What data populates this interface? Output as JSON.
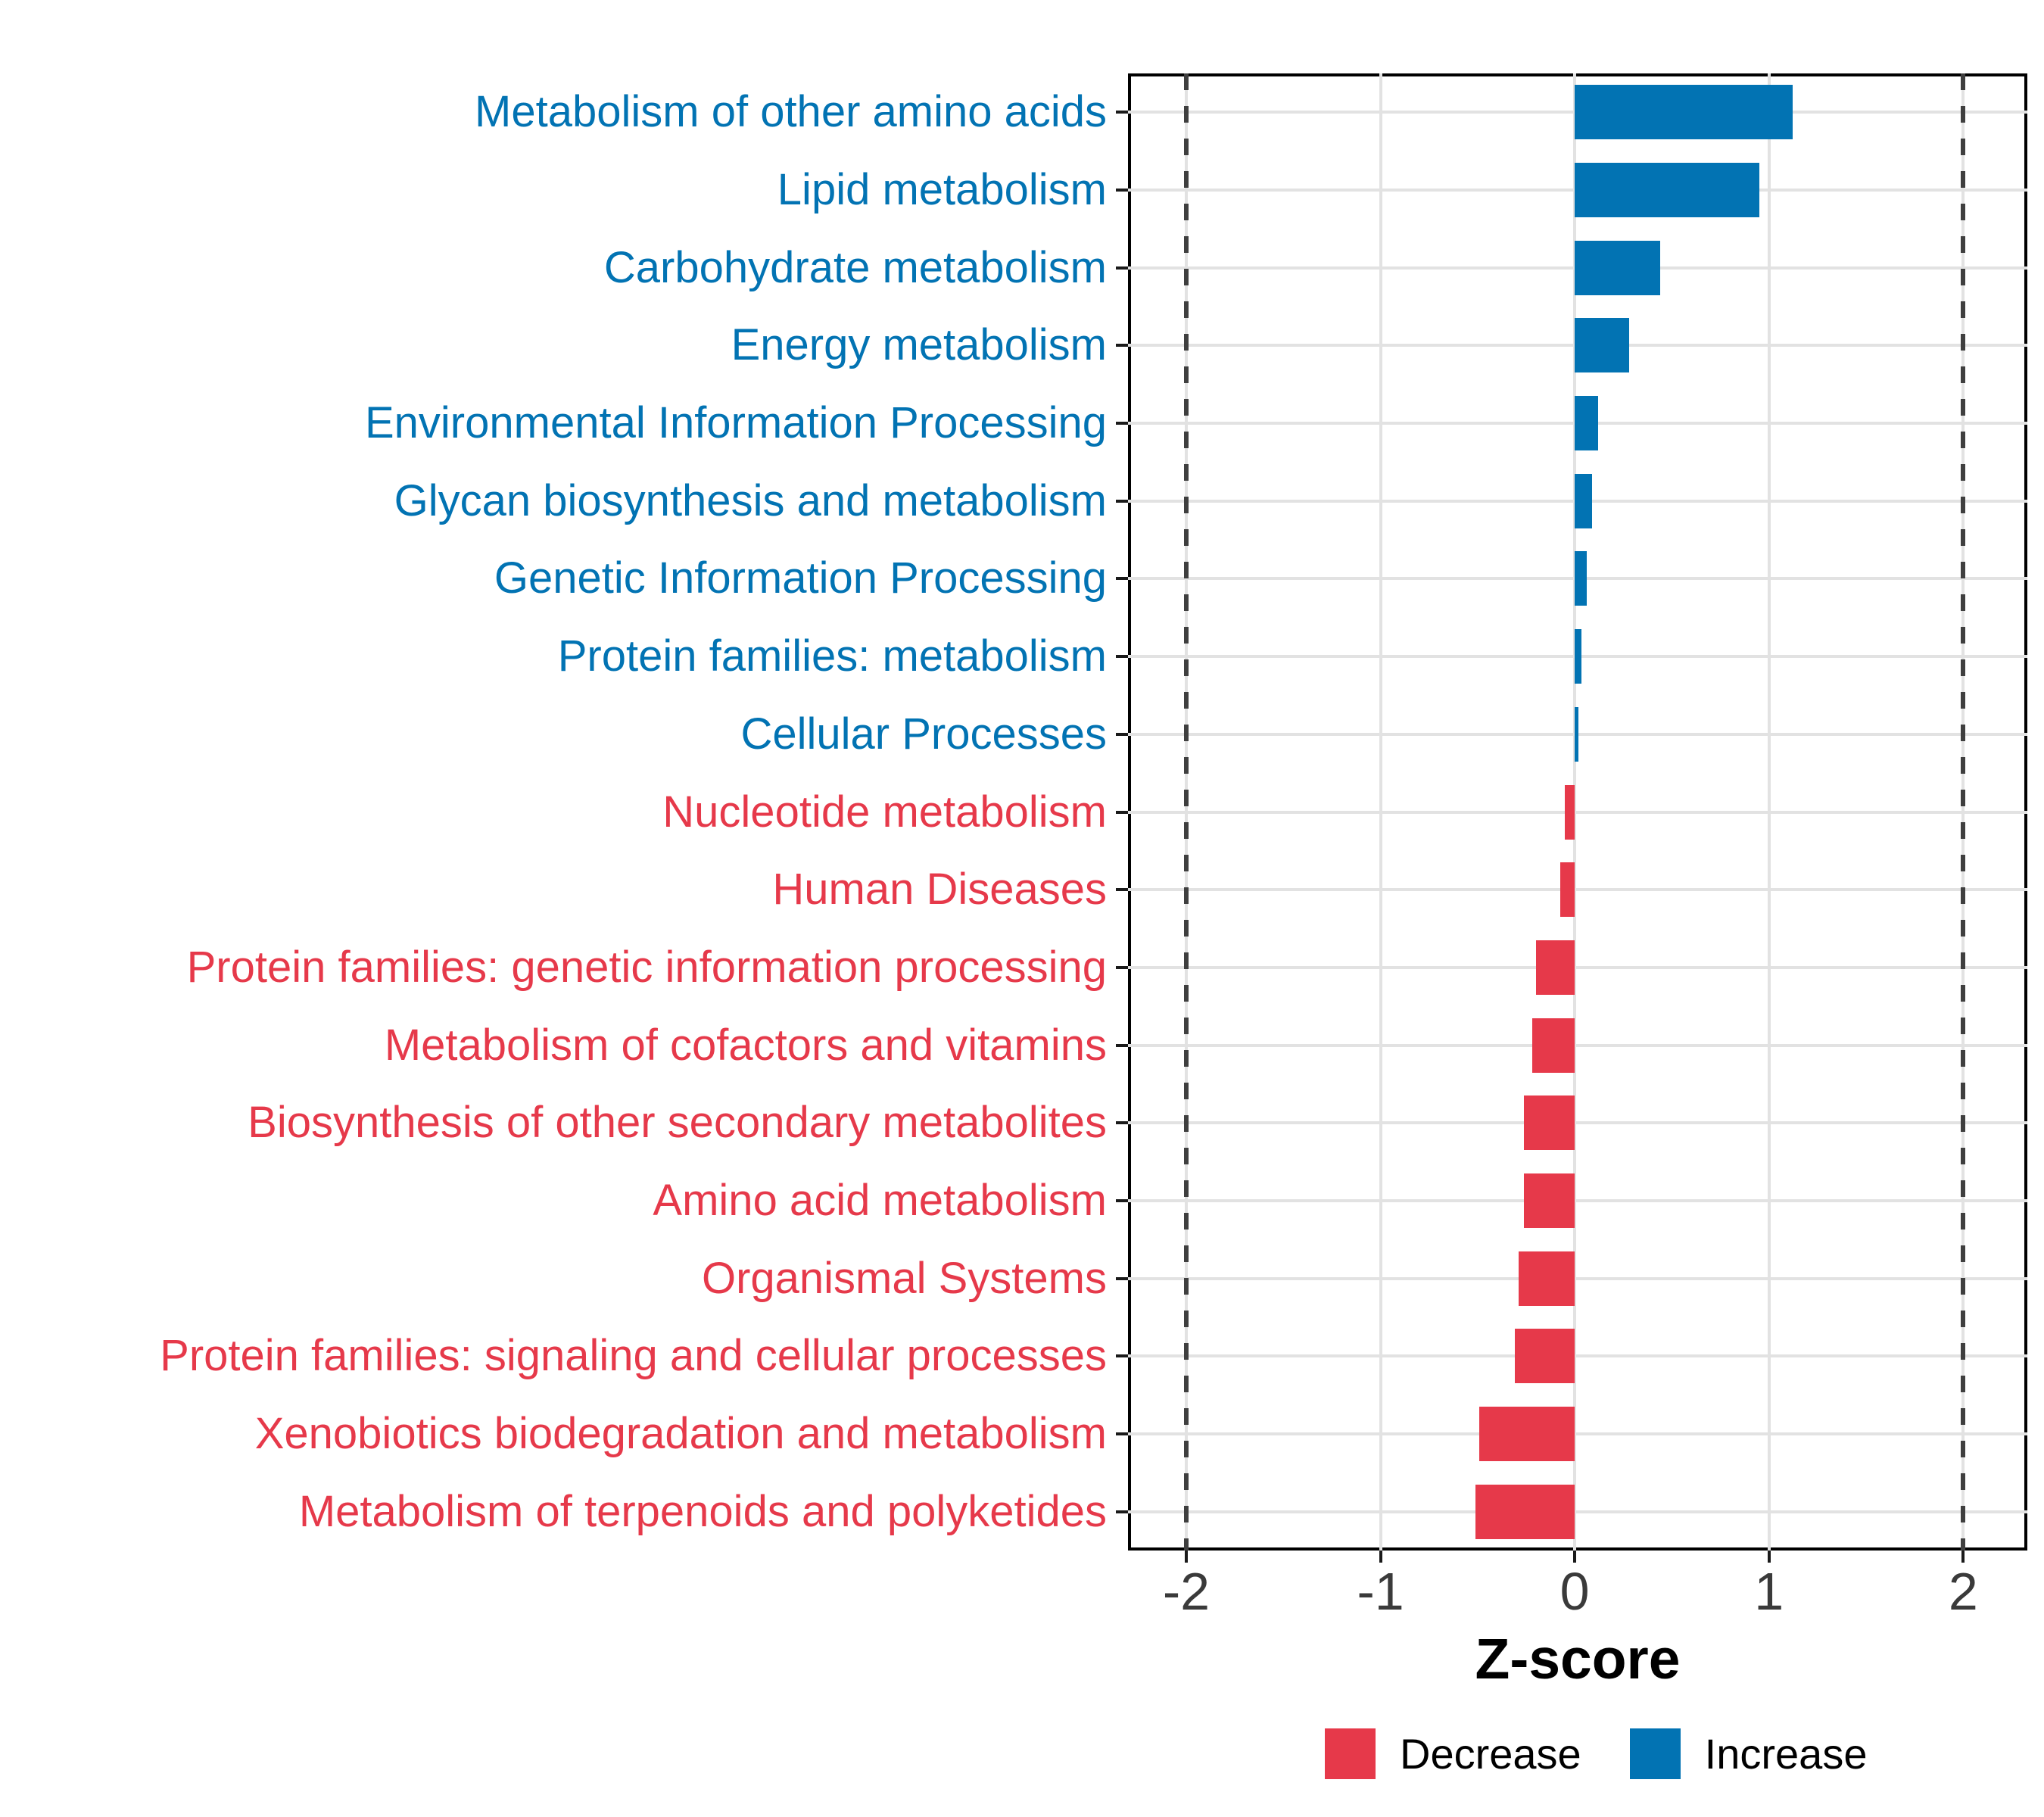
{
  "chart_data": {
    "type": "bar",
    "orientation": "horizontal",
    "title": "",
    "xlabel": "Z-score",
    "ylabel": "",
    "xlim": [
      -2.3,
      2.33
    ],
    "x_ticks": [
      -2,
      -1,
      0,
      1,
      2
    ],
    "x_tick_labels": [
      "-2",
      "-1",
      "0",
      "1",
      "2"
    ],
    "reference_lines": [
      -2,
      2
    ],
    "grid": true,
    "legend_position": "bottom-right",
    "categories": [
      "Metabolism of other amino acids",
      "Lipid metabolism",
      "Carbohydrate metabolism",
      "Energy metabolism",
      "Environmental Information Processing",
      "Glycan biosynthesis and metabolism",
      "Genetic Information Processing",
      "Protein families: metabolism",
      "Cellular Processes",
      "Nucleotide metabolism",
      "Human Diseases",
      "Protein families: genetic information processing",
      "Metabolism of cofactors and vitamins",
      "Biosynthesis of other secondary metabolites",
      "Amino acid metabolism",
      "Organismal Systems",
      "Protein families: signaling and cellular processes",
      "Xenobiotics biodegradation and metabolism",
      "Metabolism of terpenoids and polyketides"
    ],
    "values": [
      1.12,
      0.95,
      0.44,
      0.28,
      0.12,
      0.09,
      0.06,
      0.035,
      0.02,
      -0.05,
      -0.075,
      -0.2,
      -0.22,
      -0.26,
      -0.26,
      -0.29,
      -0.31,
      -0.49,
      -0.51
    ],
    "directions": [
      "increase",
      "increase",
      "increase",
      "increase",
      "increase",
      "increase",
      "increase",
      "increase",
      "increase",
      "decrease",
      "decrease",
      "decrease",
      "decrease",
      "decrease",
      "decrease",
      "decrease",
      "decrease",
      "decrease",
      "decrease"
    ]
  },
  "legend": {
    "items": [
      {
        "label": "Decrease",
        "color": "#e6394a"
      },
      {
        "label": "Increase",
        "color": "#0273b3"
      }
    ]
  },
  "colors": {
    "increase": "#0273b3",
    "decrease": "#e6394a",
    "grid": "#e2e2e2",
    "ref_line": "#3f3f3f",
    "axis_text": "#3a3a3a",
    "panel_border": "#000000",
    "background": "#ffffff"
  }
}
